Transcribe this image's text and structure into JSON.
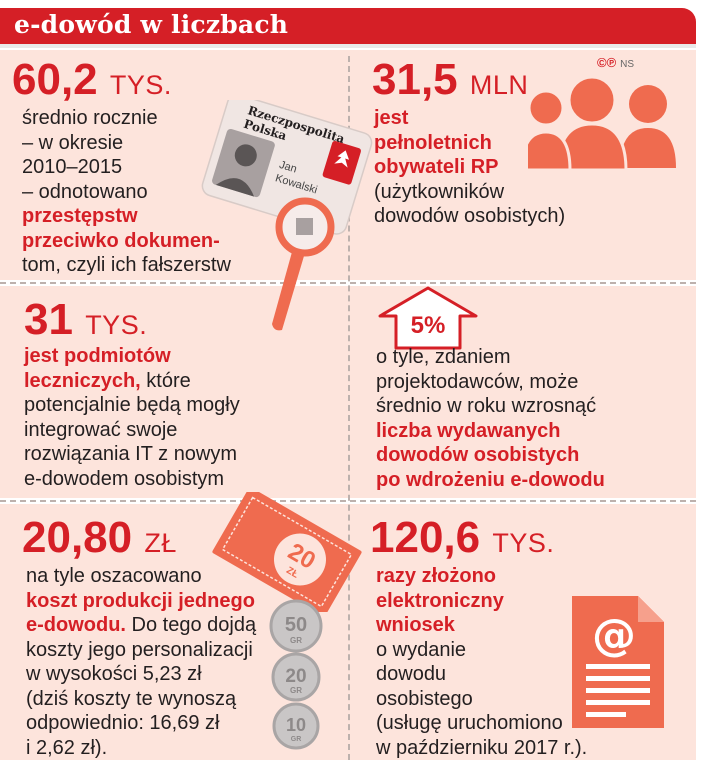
{
  "header": {
    "title": "e-dowód w liczbach"
  },
  "credits": {
    "symbols": "©℗",
    "initials": "NS"
  },
  "id_card": {
    "line1": "Rzeczpospolita",
    "line2": "Polska",
    "name1": "Jan",
    "name2": "Kowalski"
  },
  "stat1": {
    "value": "60,2",
    "unit": "TYS.",
    "lines": [
      "średnio rocznie",
      "– w okresie",
      "2010–2015",
      "– odnotowano",
      "przestępstw",
      "przeciwko dokumen-",
      "tom, czyli ich fałszerstw"
    ]
  },
  "stat2": {
    "value": "31,5",
    "unit": "MLN",
    "lines": [
      "jest",
      "pełnoletnich",
      "obywateli RP",
      "(użytkowników",
      "dowodów osobistych)"
    ]
  },
  "stat3": {
    "value": "31",
    "unit": "TYS.",
    "lines": [
      "jest podmiotów",
      "leczniczych, które",
      "potencjalnie będą mogły",
      "integrować swoje",
      "rozwiązania IT z nowym",
      "e-dowodem osobistym"
    ]
  },
  "stat4": {
    "badge": "5%",
    "lines": [
      "o tyle, zdaniem",
      "projektodawców, może",
      "średnio w roku wzrosnąć",
      "liczba wydawanych",
      "dowodów osobistych",
      "po wdrożeniu e-dowodu"
    ]
  },
  "stat5": {
    "value": "20,80",
    "unit": "ZŁ",
    "lines": [
      "na tyle oszacowano",
      "koszt produkcji jednego",
      "e-dowodu. Do tego dojdą",
      "koszty jego personalizacji",
      "w wysokości 5,23 zł",
      "(dziś koszty te wynoszą",
      "odpowiednio: 16,69 zł",
      "i 2,62 zł)."
    ]
  },
  "stat6": {
    "value": "120,6",
    "unit": "TYS.",
    "lines": [
      "razy złożono",
      "elektroniczny",
      "wniosek",
      "o wydanie",
      "dowodu",
      "osobistego",
      "(usługę uruchomiono",
      "w październiku 2017 r.)."
    ]
  },
  "banknote": {
    "value": "20",
    "unit": "ZŁ"
  },
  "coins": [
    {
      "value": "50",
      "unit": "GR"
    },
    {
      "value": "20",
      "unit": "GR"
    },
    {
      "value": "10",
      "unit": "GR"
    }
  ],
  "colors": {
    "accent": "#d51f26",
    "panel": "#fde4dc",
    "icon": "#ef6b4f"
  }
}
